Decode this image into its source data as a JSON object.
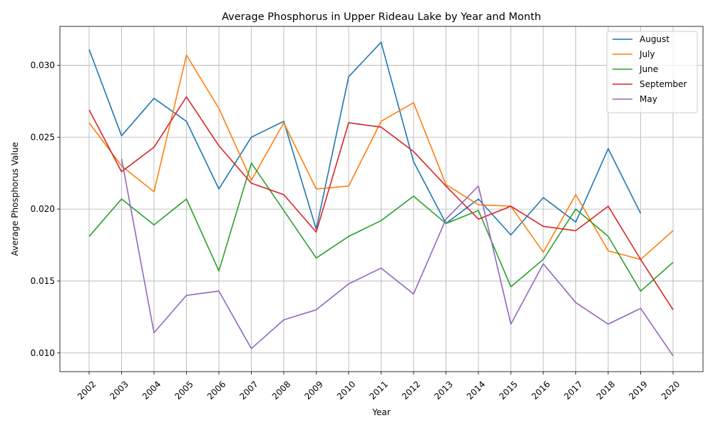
{
  "chart_data": {
    "type": "line",
    "title": "Average Phosphorus in Upper Rideau Lake by Year and Month",
    "xlabel": "Year",
    "ylabel": "Average Phosphorus Value",
    "x": [
      "2002",
      "2003",
      "2004",
      "2005",
      "2006",
      "2007",
      "2008",
      "2009",
      "2010",
      "2011",
      "2012",
      "2013",
      "2014",
      "2015",
      "2016",
      "2017",
      "2018",
      "2019",
      "2020"
    ],
    "ylim": [
      0.0087,
      0.0327
    ],
    "yticks": [
      0.01,
      0.015,
      0.02,
      0.025,
      0.03
    ],
    "ytick_labels": [
      "0.010",
      "0.015",
      "0.020",
      "0.025",
      "0.030"
    ],
    "grid": true,
    "legend_position": "top-right",
    "series": [
      {
        "name": "August",
        "color": "#1f77b4",
        "values": [
          0.0311,
          0.0251,
          0.0277,
          0.0261,
          0.0214,
          0.025,
          0.0261,
          0.0186,
          0.0292,
          0.0316,
          0.0233,
          0.019,
          0.0207,
          0.0182,
          0.0208,
          0.0191,
          0.0242,
          0.0197,
          null
        ]
      },
      {
        "name": "July",
        "color": "#ff7f0e",
        "values": [
          0.026,
          0.023,
          0.0212,
          0.0307,
          0.027,
          0.022,
          0.026,
          0.0214,
          0.0216,
          0.0261,
          0.0274,
          0.0217,
          0.0203,
          0.0202,
          0.017,
          0.021,
          0.0171,
          0.0165,
          0.0185
        ]
      },
      {
        "name": "June",
        "color": "#2ca02c",
        "values": [
          0.0181,
          0.0207,
          0.0189,
          0.0207,
          0.0157,
          0.0232,
          0.0199,
          0.0166,
          0.0181,
          0.0192,
          0.0209,
          0.019,
          0.0199,
          0.0146,
          0.0165,
          0.02,
          0.0181,
          0.0143,
          0.0163
        ]
      },
      {
        "name": "September",
        "color": "#d62728",
        "values": [
          0.0269,
          0.0226,
          0.0243,
          0.0278,
          0.0244,
          0.0218,
          0.021,
          0.0184,
          0.026,
          0.0257,
          0.024,
          0.0216,
          0.0193,
          0.0202,
          0.0188,
          0.0185,
          0.0202,
          0.0165,
          0.013
        ]
      },
      {
        "name": "May",
        "color": "#9467bd",
        "values": [
          null,
          0.0235,
          0.0114,
          0.014,
          0.0143,
          0.0103,
          0.0123,
          0.013,
          0.0148,
          0.0159,
          0.0141,
          0.0193,
          0.0216,
          0.012,
          0.0162,
          0.0135,
          0.012,
          0.0131,
          0.0098
        ]
      }
    ]
  }
}
